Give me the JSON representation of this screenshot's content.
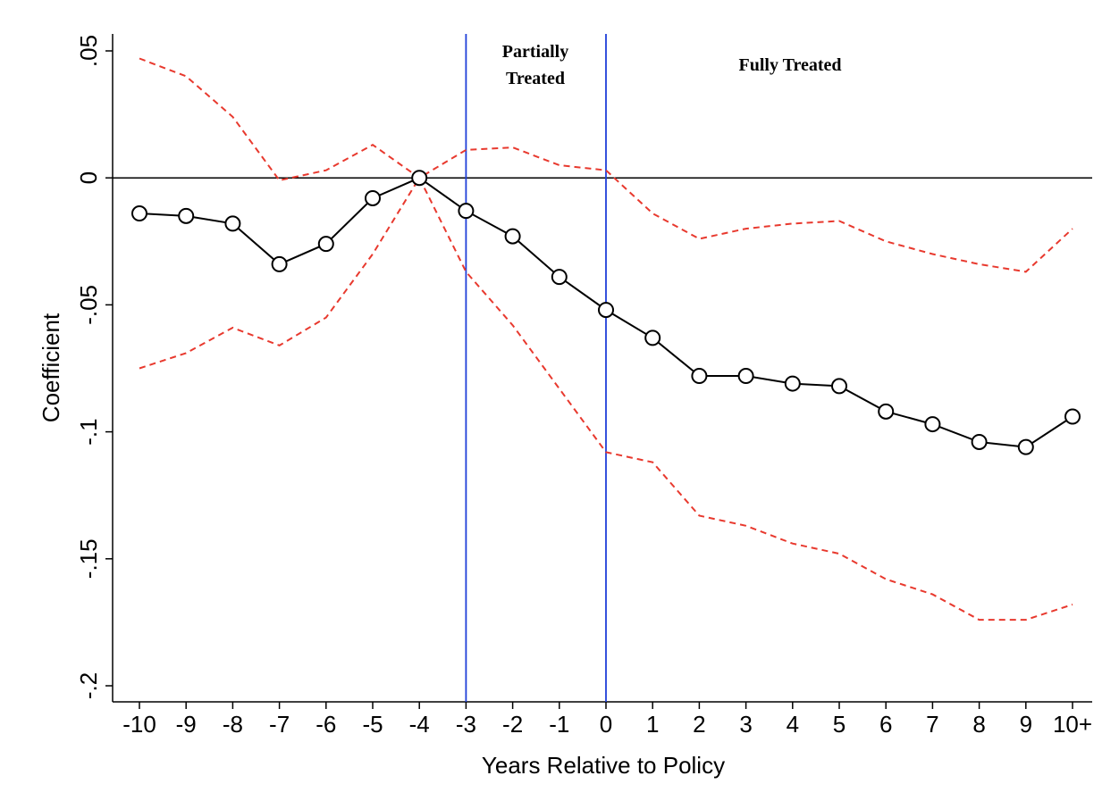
{
  "chart_data": {
    "type": "line",
    "xlabel": "Years Relative to Policy",
    "ylabel": "Coefficient",
    "categories": [
      "-10",
      "-9",
      "-8",
      "-7",
      "-6",
      "-5",
      "-4",
      "-3",
      "-2",
      "-1",
      "0",
      "1",
      "2",
      "3",
      "4",
      "5",
      "6",
      "7",
      "8",
      "9",
      "10+"
    ],
    "ylim": [
      -0.2,
      0.05
    ],
    "yticks": [
      0.05,
      0,
      -0.05,
      -0.1,
      -0.15,
      -0.2
    ],
    "ytick_labels": [
      ".05",
      "0",
      "-.05",
      "-.1",
      "-.15",
      "-.2"
    ],
    "series": [
      {
        "role": "estimate",
        "values": [
          -0.014,
          -0.015,
          -0.018,
          -0.034,
          -0.026,
          -0.008,
          0.0,
          -0.013,
          -0.023,
          -0.039,
          -0.052,
          -0.063,
          -0.078,
          -0.078,
          -0.081,
          -0.082,
          -0.092,
          -0.097,
          -0.104,
          -0.106,
          -0.094
        ],
        "color": "#000000",
        "marker": "hollow-circle"
      },
      {
        "role": "upper-ci",
        "values": [
          0.047,
          0.04,
          0.024,
          -0.001,
          0.003,
          0.013,
          0.0,
          0.011,
          0.012,
          0.005,
          0.003,
          -0.014,
          -0.024,
          -0.02,
          -0.018,
          -0.017,
          -0.025,
          -0.03,
          -0.034,
          -0.037,
          -0.02
        ],
        "color": "#e8392e",
        "style": "dashed"
      },
      {
        "role": "lower-ci",
        "values": [
          -0.075,
          -0.069,
          -0.059,
          -0.066,
          -0.055,
          -0.03,
          0.0,
          -0.037,
          -0.058,
          -0.083,
          -0.108,
          -0.112,
          -0.133,
          -0.137,
          -0.144,
          -0.148,
          -0.158,
          -0.164,
          -0.174,
          -0.174,
          -0.168
        ],
        "color": "#e8392e",
        "style": "dashed"
      }
    ],
    "reference_lines": {
      "horizontal_y": 0,
      "vertical_at_categories": [
        "-3",
        "0"
      ],
      "vertical_color": "#1f3fd8"
    },
    "annotations": {
      "partial_line1": "Partially",
      "partial_line2": "Treated",
      "full": "Fully Treated"
    },
    "grid": false,
    "legend": "none"
  }
}
